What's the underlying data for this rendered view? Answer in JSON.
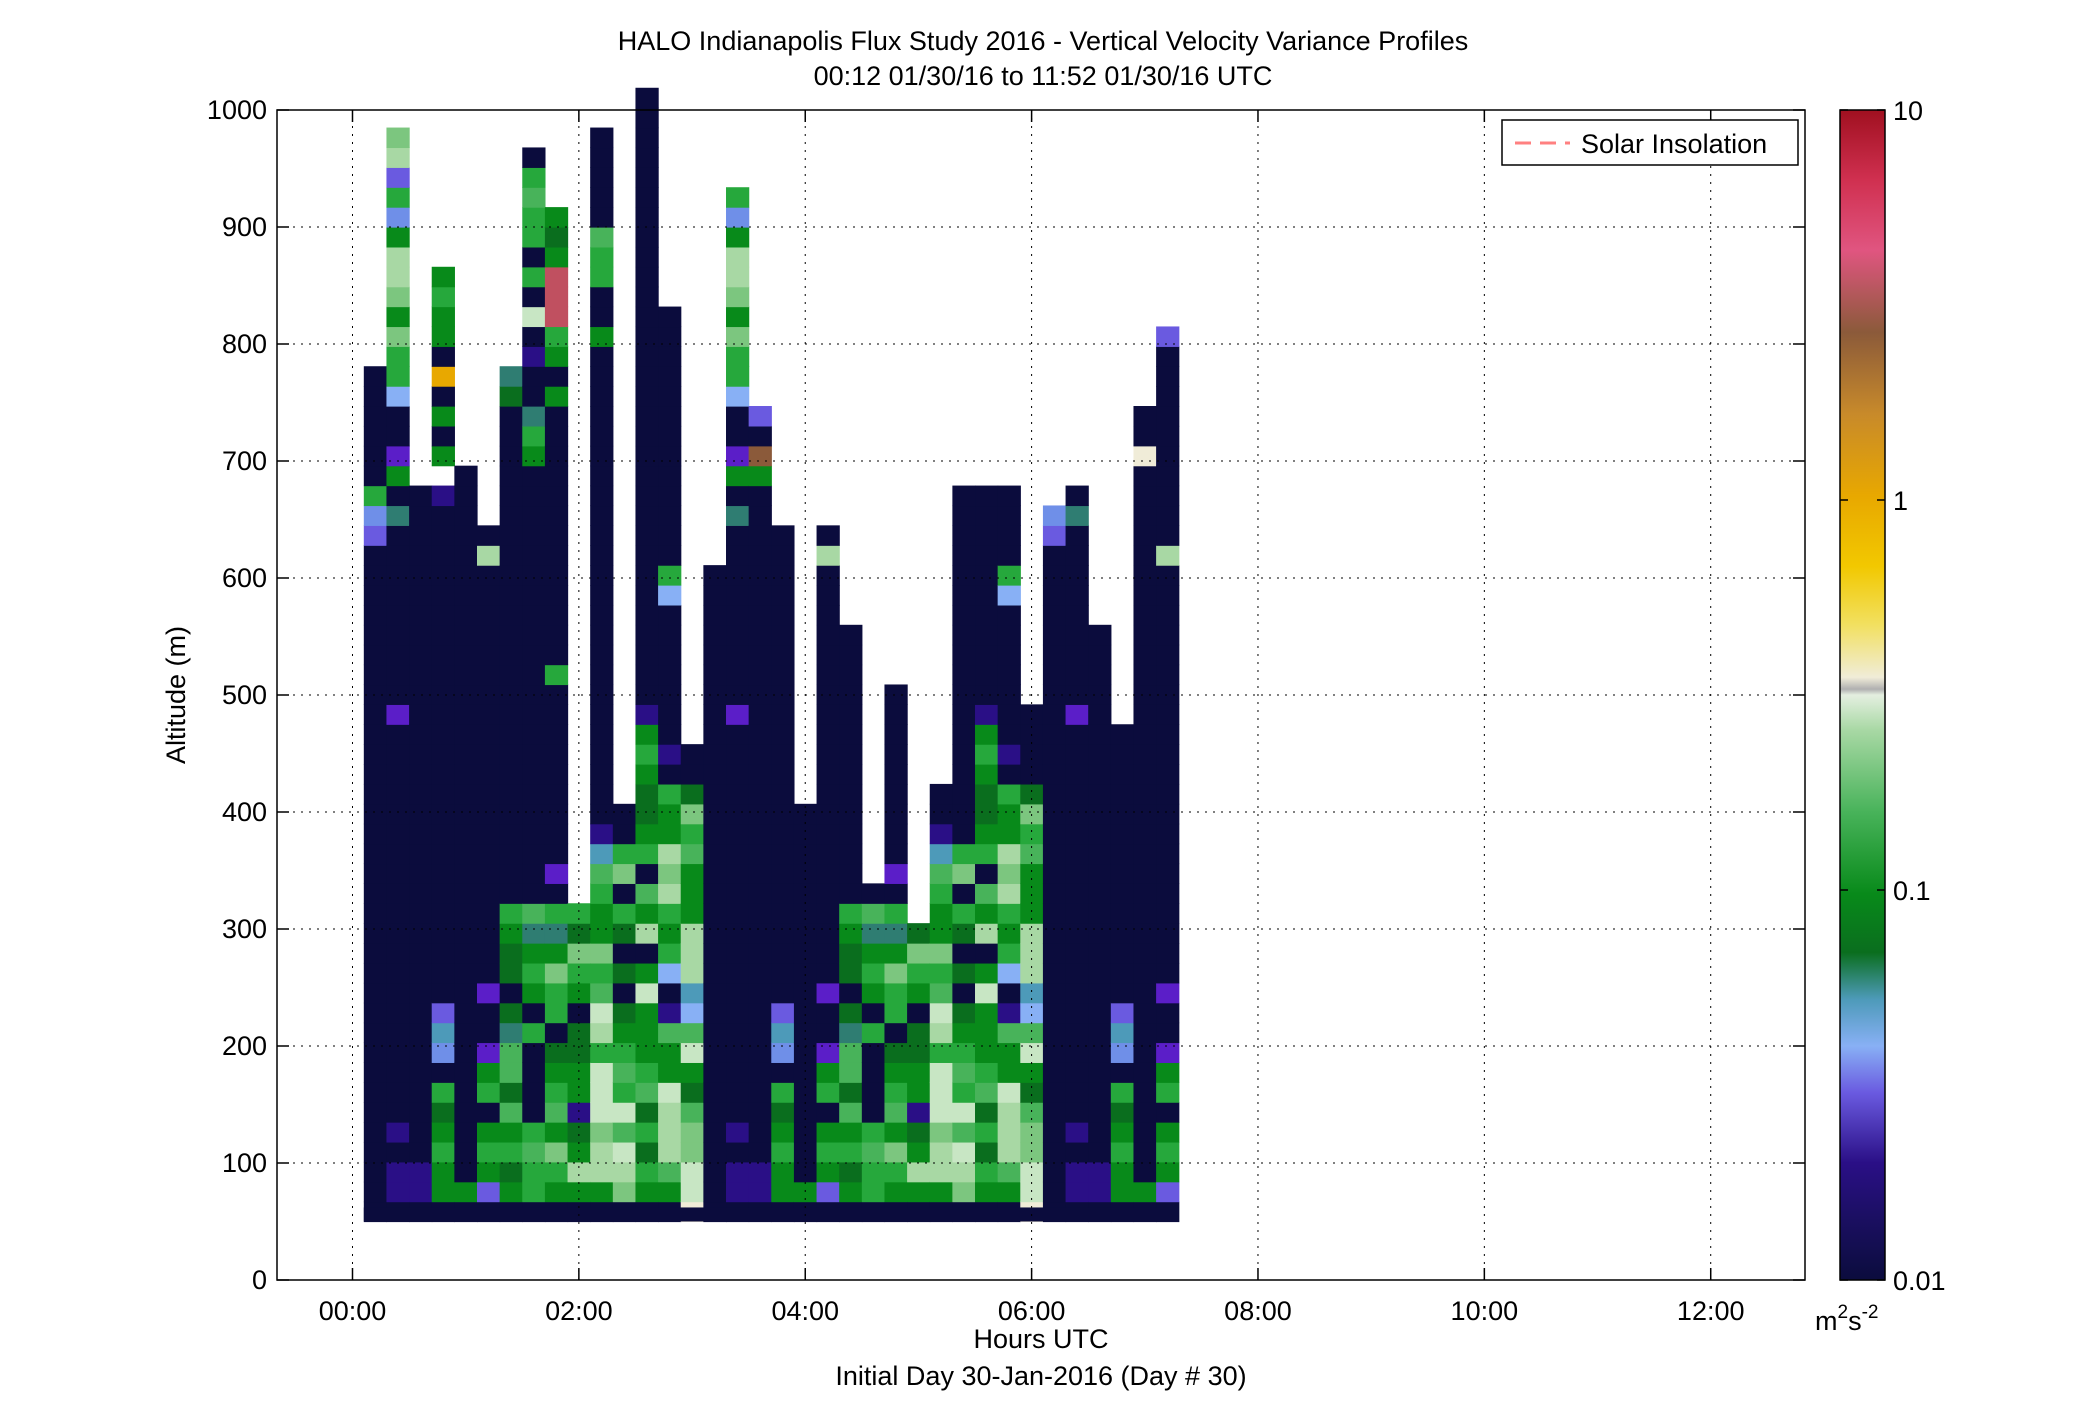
{
  "chart_data": {
    "type": "heatmap",
    "title": "HALO Indianapolis Flux Study 2016 - Vertical Velocity Variance Profiles",
    "subtitle": "00:12 01/30/16 to 11:52 01/30/16  UTC",
    "xlabel": "Hours UTC",
    "xlabel2": "Initial Day 30-Jan-2016 (Day # 30)",
    "ylabel": "Altitude (m)",
    "x_tick_labels": [
      "00:00",
      "02:00",
      "04:00",
      "06:00",
      "08:00",
      "10:00",
      "12:00"
    ],
    "x_ticks_hours": [
      0,
      2,
      4,
      6,
      8,
      10,
      12
    ],
    "xlim_hours": [
      -0.667,
      12.833
    ],
    "y_ticks": [
      0,
      100,
      200,
      300,
      400,
      500,
      600,
      700,
      800,
      900,
      1000
    ],
    "ylim": [
      0,
      1000
    ],
    "grid": true,
    "legend": {
      "position": "top-right",
      "entries": [
        "Solar Insolation"
      ],
      "line_color": "#ff8080"
    },
    "colorbar": {
      "label": "m",
      "label_sup1": "2",
      "label_mid": "s",
      "label_sup2": "-2",
      "tick_labels": [
        "10",
        "1",
        "0.1",
        "0.01"
      ],
      "tick_values": [
        10,
        1,
        0.1,
        0.01
      ],
      "scale": "log",
      "range": [
        0.01,
        10
      ]
    },
    "time_start_hour": 0.2,
    "time_step_hour": 0.2,
    "altitude_start_m": 50,
    "altitude_step_m": 17,
    "profile_top_bins": [
      43,
      55,
      37,
      48,
      38,
      35,
      43,
      54,
      51,
      16,
      55,
      21,
      57,
      46,
      24,
      33,
      52,
      41,
      35,
      21,
      35,
      30,
      17,
      27,
      15,
      22,
      37,
      37,
      37,
      26,
      36,
      37,
      30,
      25,
      41,
      45
    ],
    "color_codes": {
      "N": "#0b0c3d",
      "p": "#2a0f86",
      "P": "#5b1ec8",
      "v": "#6a5ae0",
      "b": "#6f8fe8",
      "l": "#88b0f5",
      "t": "#4d9ab9",
      "T": "#2f7d72",
      "G": "#0a6e1e",
      "g": "#088a1a",
      "m": "#26a83c",
      "M": "#48b35a",
      "h": "#7cc67f",
      "s": "#a8d8a4",
      "c": "#c8e6c4",
      "w": "#e4efe0",
      "e": "#f0ecd8",
      "k": "#b0b0b0",
      "y": "#f2e060",
      "Y": "#f2c800",
      "o": "#e8a800",
      "O": "#c88a2a",
      "r": "#8b5a3a",
      "R": "#c05060"
    },
    "profiles_bottom_up": [
      "NNNNNNNNNNNNNNNNNNNNNNNNNNNNNNNNNNvbm",
      "NppNpNNNNNNNNNNNNNNNNNNNNPNNNNNNNNNTNgPNNlmmhghssgbmvshmg",
      "NppNNNNNNNNNNNNNNNNNNNNNNNNNNNNNNNNNNgrNv",
      "NggmgGmNbtvNNNNNNNNNNNNNNNNNNNNNNNNNpngNgNo",
      "NgNNNNNNNNNNNNNNNNNNNNNNNNNNNNNNNNNNNNeNNvNNvNlNl",
      "NvgmgNmgPNNPNNNNNNNNNNNNNNNNNNNNNsNNNNNNNNN",
      "NgGmgMGMMTGNGGgmNNNNNNNNNNNNNNNNNNNNNNNNNGTmMNcNNcNmbNmhkl",
      "NmmMmNNNNmNgmgTMNNNNNNNNNNNNNNNNNNNNNNgmTNNpNcNm",
      "NgmhgMmgGNmmhgTmNPNNNNNNNNNmNNNNNNNNNNNNNgNgmRRRgGgmNmwhNg",
      "NgsgGpggGGNgmhGmNNNNNNNNNNNNNNNNNNNNNNNNNNNNNNNNNNNNNNNNN",
      "NgsshcccmscMmhggmMtpNNNNNNNNNNNNNNNNNNNNNNNNgNNmmMNNNNNNNNNNNNNNNN",
      "NhscMcmMmgGNGNGmNhmNNNNNNNNNNNNNNNNNNNNNNNNNNNNNNNNNNNNkmNNN",
      "NgmGmGMmgggcgNsgMNmgGGgmgpNNNNNNNNNNNNNNNNNNNNNNNNNNNNNNNNNNNNNNNNN",
      "NgMssscggMpNlmgmshsggmNpNNNNNNNlmNNNNNNNNNNNNNNNNNNNNNNNNNNNNNNNNNNNNNNNNNNNNNNNNNNNNNNNNNN",
      "ecchhMGgcMltsssgggMmhGNNNNNNNNNNPOpNg"
    ]
  }
}
